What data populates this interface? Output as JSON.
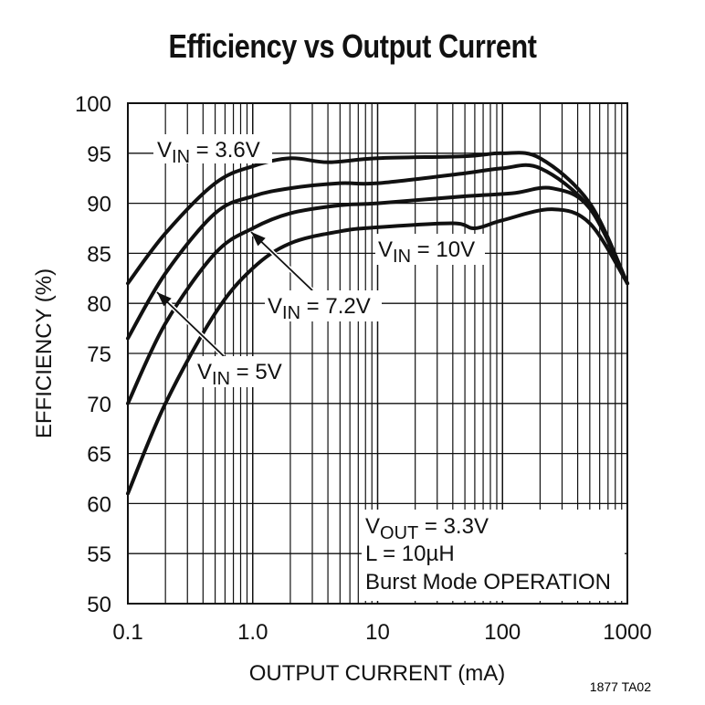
{
  "chart_data": {
    "type": "line",
    "title": "Efficiency vs Output Current",
    "xlabel": "OUTPUT CURRENT (mA)",
    "ylabel": "EFFICIENCY (%)",
    "xscale": "log",
    "xlim": [
      0.1,
      1000
    ],
    "ylim": [
      50,
      100
    ],
    "grid": true,
    "xticks": [
      "0.1",
      "1.0",
      "10",
      "100",
      "1000"
    ],
    "yticks": [
      "50",
      "55",
      "60",
      "65",
      "70",
      "75",
      "80",
      "85",
      "90",
      "95",
      "100"
    ],
    "series": [
      {
        "name": "V_IN = 3.6V",
        "label_main": "V",
        "label_sub": "IN",
        "label_rest": " = 3.6V",
        "x": [
          0.1,
          0.2,
          0.5,
          1,
          2,
          4,
          10,
          50,
          100,
          200,
          500,
          1000
        ],
        "y": [
          82,
          87,
          92,
          93.7,
          94.5,
          94.1,
          94.5,
          94.7,
          95,
          94.5,
          90,
          82
        ]
      },
      {
        "name": "V_IN = 5V",
        "label_main": "V",
        "label_sub": "IN",
        "label_rest": " = 5V",
        "x": [
          0.1,
          0.2,
          0.5,
          1,
          2,
          5,
          10,
          50,
          100,
          200,
          500,
          1000
        ],
        "y": [
          76.5,
          83,
          89,
          90.7,
          91.5,
          92,
          92,
          93,
          93.5,
          93.5,
          89.5,
          82
        ]
      },
      {
        "name": "V_IN = 7.2V",
        "label_main": "V",
        "label_sub": "IN",
        "label_rest": " = 7.2V",
        "x": [
          0.1,
          0.2,
          0.5,
          1,
          2,
          5,
          10,
          50,
          120,
          250,
          500,
          1000
        ],
        "y": [
          70,
          78,
          85,
          87.5,
          89,
          89.8,
          90,
          90.7,
          91,
          91.5,
          89.5,
          82
        ]
      },
      {
        "name": "V_IN = 10V",
        "label_main": "V",
        "label_sub": "IN",
        "label_rest": " = 10V",
        "x": [
          0.1,
          0.2,
          0.5,
          1,
          2,
          5,
          10,
          40,
          60,
          100,
          250,
          500,
          1000
        ],
        "y": [
          61,
          70,
          79,
          83.5,
          86,
          87.2,
          87.6,
          88,
          87.5,
          88.3,
          89.4,
          88,
          82
        ]
      }
    ],
    "annotation": {
      "line1_main": "V",
      "line1_sub": "OUT",
      "line1_rest": " = 3.3V",
      "line2": "L = 10µH",
      "line3": "Burst Mode OPERATION"
    },
    "figure_id": "1877 TA02",
    "colors": {
      "line": "#111111",
      "grid": "#111111",
      "background": "#ffffff"
    }
  }
}
